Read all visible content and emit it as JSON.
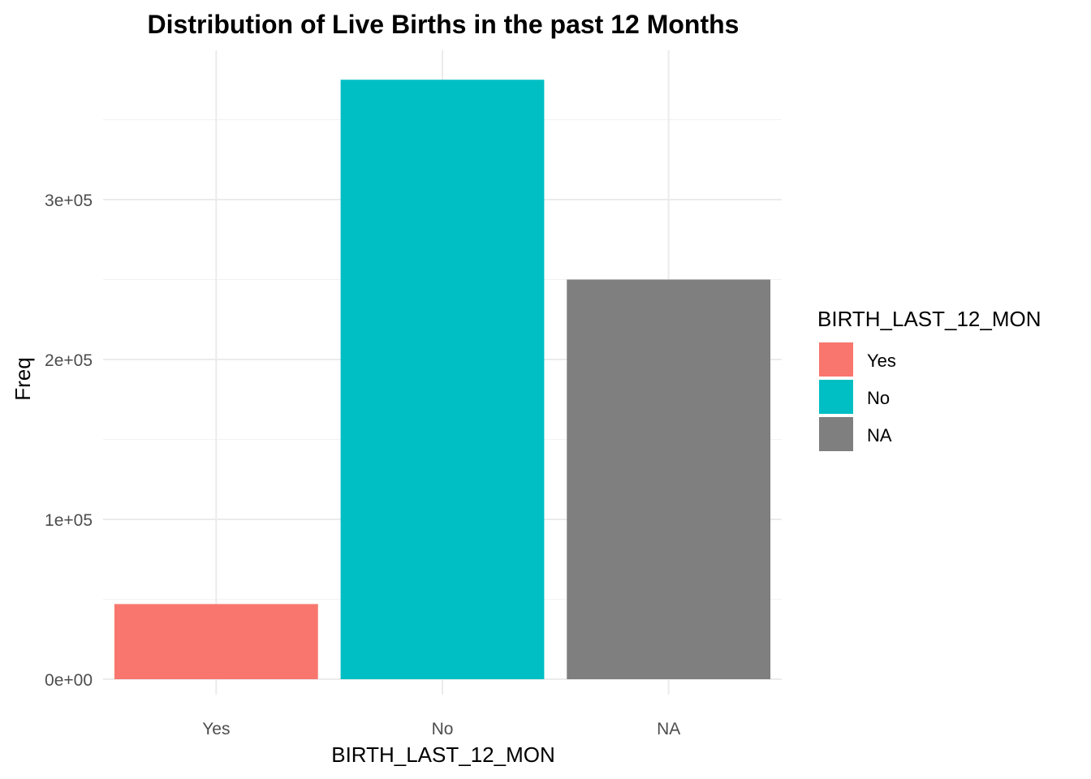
{
  "chart_data": {
    "type": "bar",
    "title": "Distribution of Live Births in the past 12 Months",
    "xlabel": "BIRTH_LAST_12_MON",
    "ylabel": "Freq",
    "categories": [
      "Yes",
      "No",
      "NA"
    ],
    "values": [
      47000,
      375000,
      250000
    ],
    "colors": [
      "#F8766D",
      "#00BFC4",
      "#7F7F7F"
    ],
    "ylim": [
      0,
      393000
    ],
    "y_ticks": [
      0,
      100000,
      200000,
      300000
    ],
    "y_tick_labels": [
      "0e+00",
      "1e+05",
      "2e+05",
      "3e+05"
    ],
    "grid": true,
    "legend": {
      "title": "BIRTH_LAST_12_MON",
      "position": "right",
      "entries": [
        "Yes",
        "No",
        "NA"
      ]
    }
  }
}
